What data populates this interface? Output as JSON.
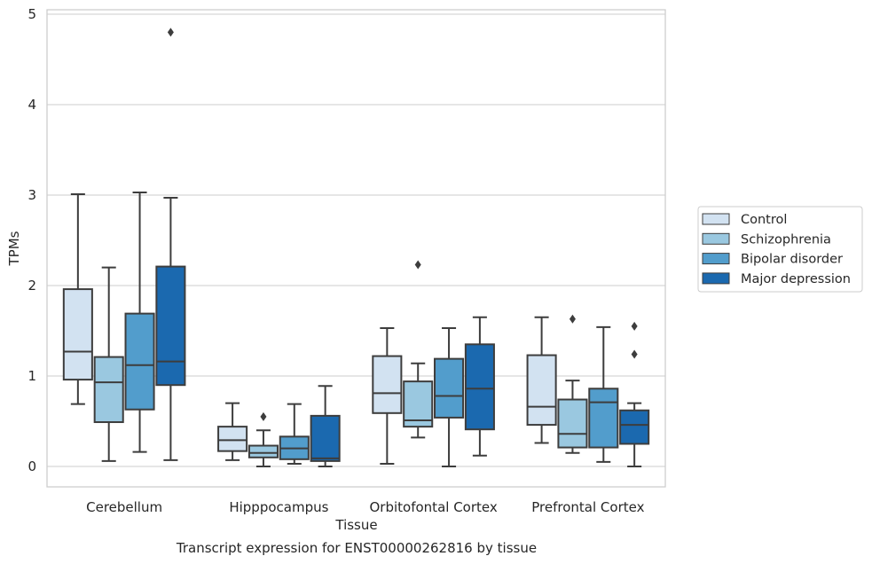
{
  "chart_data": {
    "type": "box",
    "title": "",
    "caption": "Transcript expression for ENST00000262816 by tissue",
    "xlabel": "Tissue",
    "ylabel": "TPMs",
    "ylim": [
      -0.22,
      5.07
    ],
    "yticks": [
      0,
      1,
      2,
      3,
      4,
      5
    ],
    "grid": "horizontal",
    "legend_position": "right, outside plot",
    "categories": [
      "Cerebellum",
      "Hipppocampus",
      "Orbitofontal Cortex",
      "Prefrontal Cortex"
    ],
    "series": [
      {
        "name": "Control",
        "color": "#d2e2f1",
        "boxes": [
          {
            "whisker_low": 0.69,
            "q1": 0.96,
            "median": 1.27,
            "q3": 1.96,
            "whisker_high": 3.01,
            "outliers": []
          },
          {
            "whisker_low": 0.07,
            "q1": 0.17,
            "median": 0.29,
            "q3": 0.44,
            "whisker_high": 0.7,
            "outliers": []
          },
          {
            "whisker_low": 0.03,
            "q1": 0.59,
            "median": 0.81,
            "q3": 1.22,
            "whisker_high": 1.53,
            "outliers": []
          },
          {
            "whisker_low": 0.26,
            "q1": 0.46,
            "median": 0.66,
            "q3": 1.23,
            "whisker_high": 1.65,
            "outliers": []
          }
        ]
      },
      {
        "name": "Schizophrenia",
        "color": "#9ac8e0",
        "boxes": [
          {
            "whisker_low": 0.06,
            "q1": 0.49,
            "median": 0.93,
            "q3": 1.21,
            "whisker_high": 2.2,
            "outliers": []
          },
          {
            "whisker_low": 0.0,
            "q1": 0.1,
            "median": 0.15,
            "q3": 0.23,
            "whisker_high": 0.4,
            "outliers": [
              0.55
            ]
          },
          {
            "whisker_low": 0.32,
            "q1": 0.44,
            "median": 0.51,
            "q3": 0.94,
            "whisker_high": 1.14,
            "outliers": [
              2.23
            ]
          },
          {
            "whisker_low": 0.15,
            "q1": 0.21,
            "median": 0.36,
            "q3": 0.74,
            "whisker_high": 0.95,
            "outliers": [
              1.63
            ]
          }
        ]
      },
      {
        "name": "Bipolar disorder",
        "color": "#529dcc",
        "boxes": [
          {
            "whisker_low": 0.16,
            "q1": 0.63,
            "median": 1.12,
            "q3": 1.69,
            "whisker_high": 3.03,
            "outliers": []
          },
          {
            "whisker_low": 0.03,
            "q1": 0.08,
            "median": 0.2,
            "q3": 0.33,
            "whisker_high": 0.69,
            "outliers": []
          },
          {
            "whisker_low": 0.0,
            "q1": 0.54,
            "median": 0.78,
            "q3": 1.19,
            "whisker_high": 1.53,
            "outliers": []
          },
          {
            "whisker_low": 0.05,
            "q1": 0.21,
            "median": 0.71,
            "q3": 0.86,
            "whisker_high": 1.54,
            "outliers": []
          }
        ]
      },
      {
        "name": "Major depression",
        "color": "#1b69af",
        "boxes": [
          {
            "whisker_low": 0.07,
            "q1": 0.9,
            "median": 1.16,
            "q3": 2.21,
            "whisker_high": 2.97,
            "outliers": [
              4.8
            ]
          },
          {
            "whisker_low": 0.0,
            "q1": 0.06,
            "median": 0.09,
            "q3": 0.56,
            "whisker_high": 0.89,
            "outliers": []
          },
          {
            "whisker_low": 0.12,
            "q1": 0.41,
            "median": 0.86,
            "q3": 1.35,
            "whisker_high": 1.65,
            "outliers": []
          },
          {
            "whisker_low": 0.0,
            "q1": 0.25,
            "median": 0.46,
            "q3": 0.62,
            "whisker_high": 0.7,
            "outliers": [
              1.24,
              1.55
            ]
          }
        ]
      }
    ]
  }
}
